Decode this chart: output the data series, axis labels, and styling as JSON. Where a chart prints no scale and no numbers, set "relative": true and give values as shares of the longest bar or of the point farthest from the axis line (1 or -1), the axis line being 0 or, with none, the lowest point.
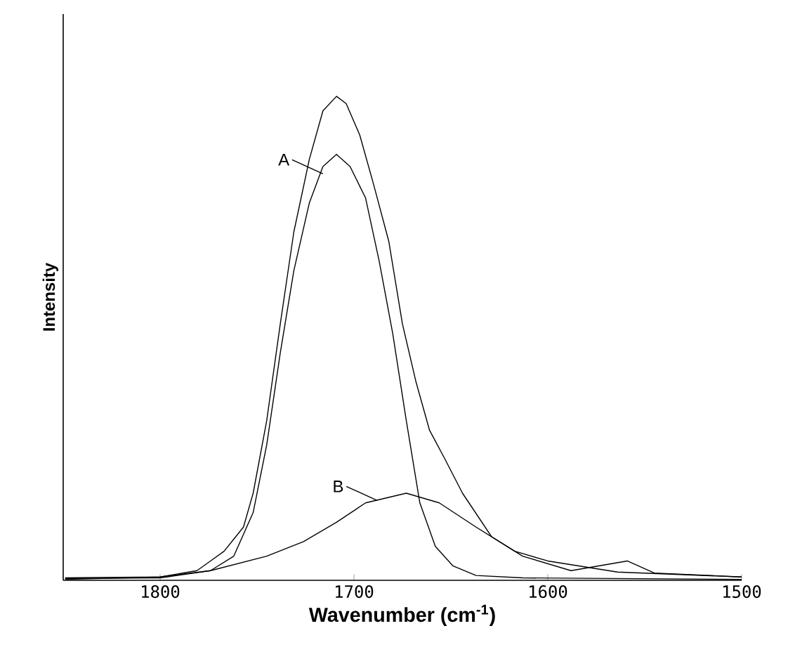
{
  "chart_data": {
    "type": "line",
    "xlabel": "Wavenumber (cm$^{-1}$)",
    "ylabel": "Intensity",
    "relative": true,
    "xlim": [
      1850,
      1500
    ],
    "xticks": [
      1800,
      1700,
      1600,
      1500
    ],
    "grid": false,
    "marker": "none",
    "line_style": "solid",
    "series": [
      {
        "color": "#000000",
        "x": [
          1849,
          1800,
          1781,
          1774,
          1767,
          1761,
          1757,
          1752,
          1745,
          1738,
          1731,
          1723,
          1716,
          1709,
          1704,
          1697,
          1690,
          1682,
          1675,
          1668,
          1661,
          1653,
          1644,
          1629,
          1613,
          1588,
          1559,
          1545,
          1500
        ],
        "values": [
          0.005,
          0.007,
          0.02,
          0.04,
          0.06,
          0.09,
          0.11,
          0.18,
          0.33,
          0.53,
          0.72,
          0.87,
          0.97,
          1.0,
          0.985,
          0.92,
          0.82,
          0.7,
          0.53,
          0.41,
          0.31,
          0.25,
          0.18,
          0.09,
          0.05,
          0.02,
          0.04,
          0.015,
          0.007
        ]
      },
      {
        "color": "#000000",
        "x": [
          1849,
          1800,
          1774,
          1762,
          1752,
          1745,
          1738,
          1731,
          1723,
          1716,
          1709,
          1702,
          1694,
          1687,
          1680,
          1673,
          1666,
          1658,
          1649,
          1637,
          1613,
          1500
        ],
        "values": [
          0.004,
          0.005,
          0.02,
          0.05,
          0.14,
          0.28,
          0.47,
          0.64,
          0.78,
          0.855,
          0.88,
          0.855,
          0.79,
          0.66,
          0.51,
          0.33,
          0.16,
          0.07,
          0.03,
          0.01,
          0.005,
          0.002
        ]
      },
      {
        "color": "#000000",
        "x": [
          1849,
          1800,
          1774,
          1745,
          1726,
          1709,
          1694,
          1673,
          1656,
          1637,
          1617,
          1600,
          1564,
          1500
        ],
        "values": [
          0.002,
          0.007,
          0.02,
          0.05,
          0.08,
          0.12,
          0.16,
          0.18,
          0.16,
          0.11,
          0.06,
          0.04,
          0.017,
          0.007
        ]
      }
    ],
    "annotations": [
      {
        "text": "A",
        "x": 1716,
        "y": 0.84
      },
      {
        "text": "B",
        "x": 1688,
        "y": 0.165
      }
    ]
  }
}
